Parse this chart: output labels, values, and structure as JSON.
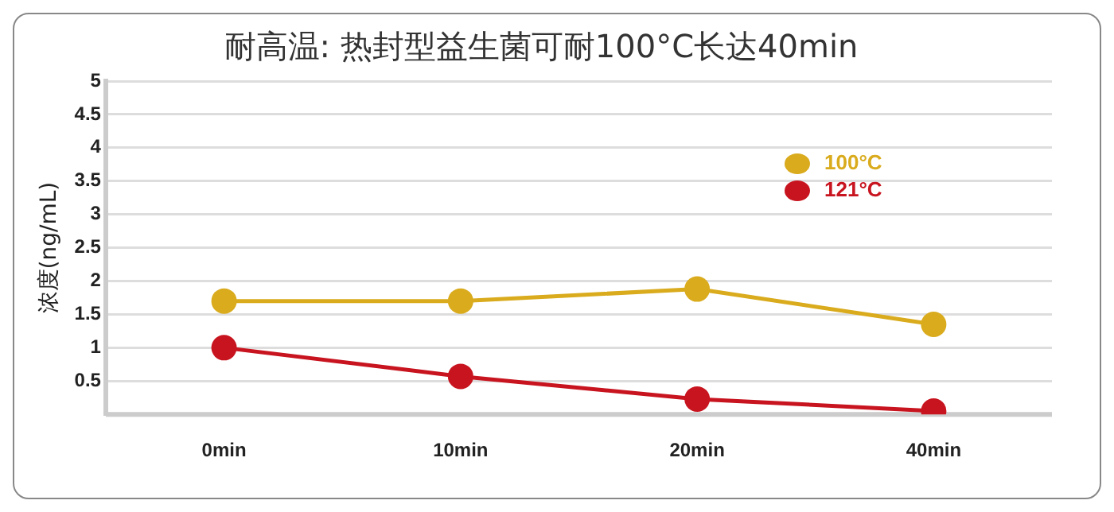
{
  "chart_data": {
    "type": "line",
    "title": "耐高温: 热封型益生菌可耐100°C长达40min",
    "ylabel": "浓度(ng/mL)",
    "categories": [
      "0min",
      "10min",
      "20min",
      "40min"
    ],
    "series": [
      {
        "name": "100°C",
        "color": "#d9ab1d",
        "values": [
          1.7,
          1.7,
          1.88,
          1.35
        ]
      },
      {
        "name": "121°C",
        "color": "#c8141f",
        "values": [
          1.0,
          0.57,
          0.23,
          0.05
        ]
      }
    ],
    "ylim": [
      0,
      5
    ],
    "yticks": [
      {
        "value": 0,
        "label": null
      },
      0.5,
      1,
      1.5,
      2,
      2.5,
      3,
      3.5,
      4,
      4.5,
      5
    ],
    "grid": "y",
    "legend": "top right",
    "marker": "circle",
    "line_style": "solid"
  }
}
